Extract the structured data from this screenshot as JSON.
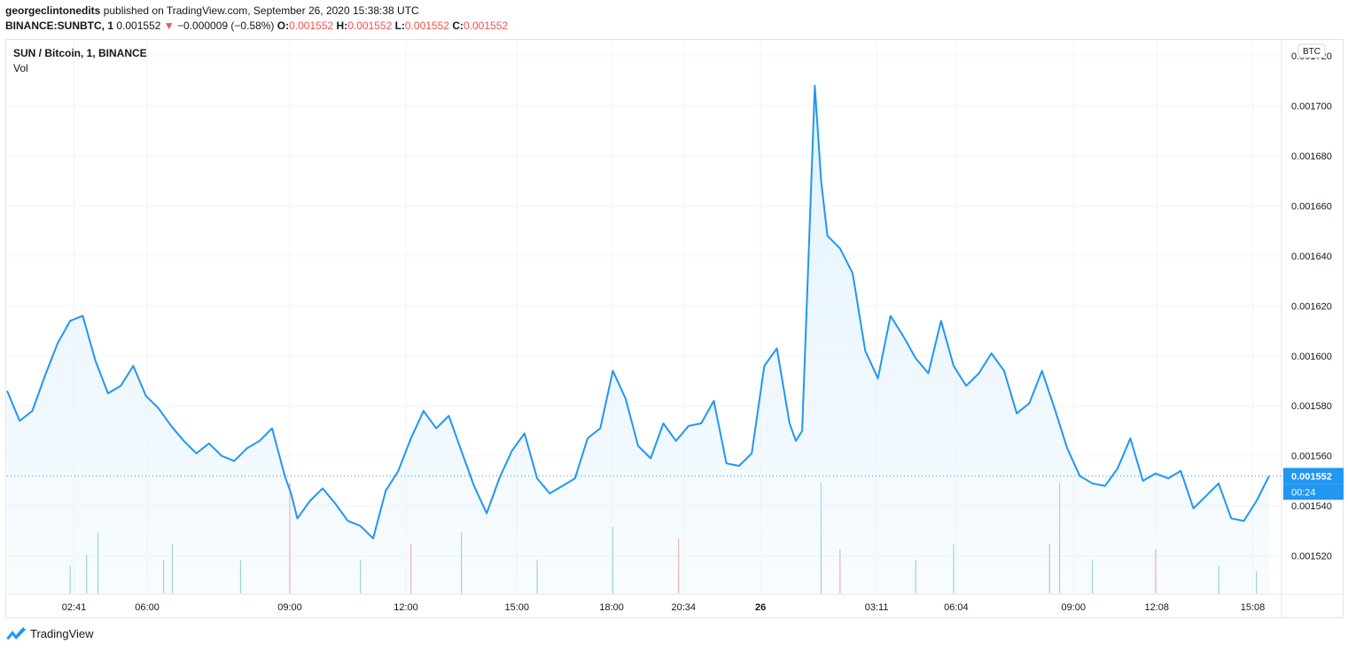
{
  "header": {
    "author": "georgeclintonedits",
    "published_text": "published on TradingView.com, September 26, 2020 15:38:38 UTC",
    "symbol": "BINANCE:SUNBTC, 1",
    "last": "0.001552",
    "change_arrow": "▼",
    "change": "−0.000009 (−0.58%)",
    "open_label": "O:",
    "open": "0.001552",
    "high_label": "H:",
    "high": "0.001552",
    "low_label": "L:",
    "low": "0.001552",
    "close_label": "C:",
    "close": "0.001552"
  },
  "pane": {
    "title": "SUN / Bitcoin, 1, BINANCE",
    "volume_label": "Vol"
  },
  "footer": {
    "brand": "TradingView"
  },
  "colors": {
    "line": "#2196f3",
    "fill": "#e3f2fd",
    "down": "#ef5350",
    "up": "#26a69a",
    "grid": "#f0f3fa",
    "text": "#131722"
  },
  "chart_data": {
    "type": "area",
    "title": "SUN / Bitcoin, 1, BINANCE",
    "currency_label": "BTC",
    "ylim": [
      0.001505,
      0.001726
    ],
    "y_ticks": [
      "0.001720",
      "0.001700",
      "0.001680",
      "0.001660",
      "0.001640",
      "0.001620",
      "0.001600",
      "0.001580",
      "0.001560",
      "0.001540",
      "0.001520"
    ],
    "x_ticks": [
      {
        "label": "02:41",
        "t": 0.053
      },
      {
        "label": "06:00",
        "t": 0.111
      },
      {
        "label": "09:00",
        "t": 0.224
      },
      {
        "label": "12:00",
        "t": 0.316
      },
      {
        "label": "15:00",
        "t": 0.404
      },
      {
        "label": "18:00",
        "t": 0.479
      },
      {
        "label": "20:34",
        "t": 0.536
      },
      {
        "label": "26",
        "t": 0.597
      },
      {
        "label": "03:11",
        "t": 0.689
      },
      {
        "label": "06:04",
        "t": 0.752
      },
      {
        "label": "09:00",
        "t": 0.845
      },
      {
        "label": "12:08",
        "t": 0.911
      },
      {
        "label": "15:08",
        "t": 0.987
      }
    ],
    "last_price_label": "0.001552",
    "last_price": 0.001552,
    "countdown_label": "00:24",
    "series": [
      {
        "t": [
          0,
          0.01,
          0.02,
          0.03,
          0.04,
          0.05,
          0.06,
          0.07,
          0.08,
          0.09,
          0.1,
          0.11,
          0.12,
          0.13,
          0.14,
          0.15,
          0.16,
          0.17,
          0.18,
          0.19,
          0.2,
          0.21,
          0.22,
          0.225,
          0.23,
          0.24,
          0.25,
          0.26,
          0.27,
          0.28,
          0.29,
          0.3,
          0.31,
          0.32,
          0.33,
          0.34,
          0.35,
          0.36,
          0.37,
          0.38,
          0.39,
          0.4,
          0.41,
          0.42,
          0.43,
          0.44,
          0.45,
          0.46,
          0.47,
          0.48,
          0.49,
          0.5,
          0.51,
          0.52,
          0.53,
          0.54,
          0.55,
          0.56,
          0.57,
          0.58,
          0.59,
          0.6,
          0.61,
          0.62,
          0.625,
          0.63,
          0.64,
          0.645,
          0.65,
          0.66,
          0.67,
          0.68,
          0.69,
          0.7,
          0.71,
          0.72,
          0.73,
          0.74,
          0.75,
          0.76,
          0.77,
          0.78,
          0.79,
          0.8,
          0.81,
          0.82,
          0.83,
          0.84,
          0.85,
          0.86,
          0.87,
          0.88,
          0.89,
          0.9,
          0.91,
          0.92,
          0.93,
          0.94,
          0.95,
          0.96,
          0.97,
          0.98,
          0.99,
          1.0
        ],
        "y": [
          0.001586,
          0.001574,
          0.001578,
          0.001592,
          0.001605,
          0.001614,
          0.001616,
          0.001598,
          0.001585,
          0.001588,
          0.001596,
          0.001584,
          0.001579,
          0.001572,
          0.001566,
          0.001561,
          0.001565,
          0.00156,
          0.001558,
          0.001563,
          0.001566,
          0.001571,
          0.001552,
          0.001545,
          0.001535,
          0.001542,
          0.001547,
          0.001541,
          0.001534,
          0.001532,
          0.001527,
          0.001546,
          0.001554,
          0.001567,
          0.001578,
          0.001571,
          0.001576,
          0.001562,
          0.001548,
          0.001537,
          0.001551,
          0.001562,
          0.001569,
          0.001551,
          0.001545,
          0.001548,
          0.001551,
          0.001567,
          0.001571,
          0.001594,
          0.001583,
          0.001564,
          0.001559,
          0.001573,
          0.001566,
          0.001572,
          0.001573,
          0.001582,
          0.001557,
          0.001556,
          0.001561,
          0.001596,
          0.001603,
          0.001573,
          0.001566,
          0.00157,
          0.001708,
          0.00167,
          0.001648,
          0.001643,
          0.001633,
          0.001602,
          0.001591,
          0.001616,
          0.001608,
          0.001599,
          0.001593,
          0.001614,
          0.001596,
          0.001588,
          0.001593,
          0.001601,
          0.001594,
          0.001577,
          0.001581,
          0.001594,
          0.001579,
          0.001563,
          0.001552,
          0.001549,
          0.001548,
          0.001555,
          0.001567,
          0.00155,
          0.001553,
          0.001551,
          0.001554,
          0.001539,
          0.001544,
          0.001549,
          0.001535,
          0.001534,
          0.001542,
          0.001552
        ]
      }
    ],
    "volume": [
      {
        "t": 0.05,
        "v": 0.25
      },
      {
        "t": 0.063,
        "v": 0.35
      },
      {
        "t": 0.072,
        "v": 0.55
      },
      {
        "t": 0.124,
        "v": 0.3
      },
      {
        "t": 0.131,
        "v": 0.45
      },
      {
        "t": 0.185,
        "v": 0.3
      },
      {
        "t": 0.224,
        "v": 1.0,
        "down": true
      },
      {
        "t": 0.28,
        "v": 0.3
      },
      {
        "t": 0.32,
        "v": 0.45,
        "down": true
      },
      {
        "t": 0.36,
        "v": 0.55
      },
      {
        "t": 0.42,
        "v": 0.3
      },
      {
        "t": 0.48,
        "v": 0.6
      },
      {
        "t": 0.532,
        "v": 0.5,
        "down": true
      },
      {
        "t": 0.645,
        "v": 1.0
      },
      {
        "t": 0.66,
        "v": 0.4,
        "down": true
      },
      {
        "t": 0.72,
        "v": 0.3
      },
      {
        "t": 0.75,
        "v": 0.45
      },
      {
        "t": 0.826,
        "v": 0.45
      },
      {
        "t": 0.834,
        "v": 1.0,
        "down": true
      },
      {
        "t": 0.86,
        "v": 0.3
      },
      {
        "t": 0.91,
        "v": 0.4,
        "down": true
      },
      {
        "t": 0.96,
        "v": 0.25
      },
      {
        "t": 0.99,
        "v": 0.2
      }
    ]
  }
}
